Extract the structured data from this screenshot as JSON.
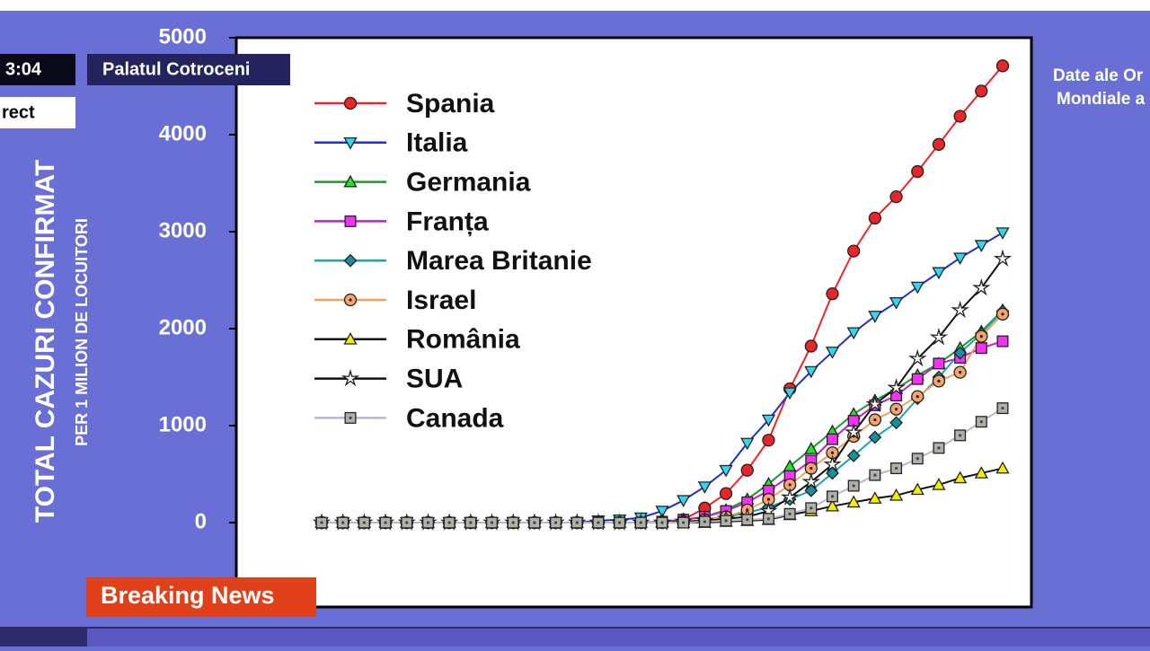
{
  "overlay": {
    "clock": "3:04",
    "location": "Palatul Cotroceni",
    "live": "rect",
    "source_line1": "Date ale Or",
    "source_line2": "Mondiale a",
    "breaking": "Breaking News"
  },
  "chart_data": {
    "type": "line",
    "y_title": "TOTAL CAZURI CONFIRMAT",
    "y_subtitle": "PER 1 MILION DE LOCUITORI",
    "categories": [
      null,
      null,
      null,
      null,
      null,
      null,
      null,
      null,
      null,
      null,
      null,
      null,
      null,
      null,
      null,
      null,
      null,
      null,
      null,
      null,
      null,
      null,
      null,
      null,
      null,
      null,
      null,
      null,
      null,
      null,
      null,
      null,
      null
    ],
    "ylim": [
      -870,
      5000
    ],
    "yticks": [
      0,
      1000,
      2000,
      3000,
      4000,
      5000
    ],
    "legend": "upper left",
    "series": [
      {
        "name": "Spania",
        "color": "#e8262a",
        "marker": "circle",
        "marker_color": "#e8262a",
        "values": [
          0,
          0,
          0,
          0,
          0,
          0,
          0,
          0,
          0,
          0,
          0,
          0,
          0,
          0,
          0,
          0,
          10,
          30,
          150,
          300,
          540,
          850,
          1380,
          1820,
          2360,
          2800,
          3140,
          3360,
          3620,
          3900,
          4190,
          4450,
          4710
        ]
      },
      {
        "name": "Italia",
        "color": "#1f2fd0",
        "marker": "tri-down",
        "marker_color": "#33d6f0",
        "values": [
          0,
          0,
          0,
          0,
          0,
          0,
          0,
          0,
          0,
          0,
          0,
          0,
          0,
          20,
          30,
          50,
          120,
          230,
          370,
          540,
          820,
          1060,
          1340,
          1560,
          1760,
          1960,
          2130,
          2270,
          2430,
          2580,
          2730,
          2860,
          2990
        ]
      },
      {
        "name": "Germania",
        "color": "#1a9c2a",
        "marker": "tri-up",
        "marker_color": "#22e52a",
        "values": [
          0,
          0,
          0,
          0,
          0,
          0,
          0,
          0,
          0,
          0,
          0,
          0,
          0,
          0,
          0,
          0,
          10,
          30,
          60,
          130,
          240,
          400,
          580,
          760,
          940,
          1120,
          1260,
          1380,
          1520,
          1640,
          1800,
          1970,
          2190
        ]
      },
      {
        "name": "Franța",
        "color": "#c21fc2",
        "marker": "square",
        "marker_color": "#f531f5",
        "values": [
          0,
          0,
          0,
          0,
          0,
          0,
          0,
          0,
          0,
          0,
          0,
          0,
          0,
          0,
          0,
          0,
          10,
          30,
          60,
          120,
          210,
          330,
          480,
          640,
          860,
          1050,
          1210,
          1310,
          1480,
          1640,
          1700,
          1800,
          1870
        ]
      },
      {
        "name": "Marea Britanie",
        "color": "#1aa6b0",
        "marker": "diamond",
        "marker_color": "#1a8ea0",
        "values": [
          0,
          0,
          0,
          0,
          0,
          0,
          0,
          0,
          0,
          0,
          0,
          0,
          0,
          0,
          0,
          0,
          0,
          10,
          30,
          60,
          100,
          160,
          240,
          330,
          510,
          690,
          880,
          1030,
          1280,
          1500,
          1750,
          1950,
          2180
        ]
      },
      {
        "name": "Israel",
        "color": "#f0a060",
        "marker": "circle-dot",
        "marker_color": "#f5a56a",
        "values": [
          0,
          0,
          0,
          0,
          0,
          0,
          0,
          0,
          0,
          0,
          0,
          0,
          0,
          0,
          0,
          0,
          0,
          10,
          30,
          60,
          130,
          240,
          390,
          560,
          720,
          890,
          1060,
          1170,
          1300,
          1460,
          1550,
          1920,
          2150
        ]
      },
      {
        "name": "România",
        "color": "#111111",
        "marker": "tri-up",
        "marker_color": "#f2f000",
        "values": [
          0,
          0,
          0,
          0,
          0,
          0,
          0,
          0,
          0,
          0,
          0,
          0,
          0,
          0,
          0,
          0,
          0,
          0,
          0,
          10,
          20,
          30,
          80,
          120,
          170,
          210,
          250,
          280,
          340,
          390,
          460,
          510,
          560
        ]
      },
      {
        "name": "SUA",
        "color": "#111111",
        "marker": "star",
        "marker_color": "#ffffff",
        "values": [
          0,
          0,
          0,
          0,
          0,
          0,
          0,
          0,
          0,
          0,
          0,
          0,
          0,
          0,
          0,
          0,
          0,
          10,
          20,
          40,
          60,
          120,
          260,
          420,
          600,
          930,
          1220,
          1390,
          1690,
          1910,
          2190,
          2420,
          2720
        ]
      },
      {
        "name": "Canada",
        "color": "#b8b8c8",
        "marker": "square-dot",
        "marker_color": "#b0b0a8",
        "values": [
          0,
          0,
          0,
          0,
          0,
          0,
          0,
          0,
          0,
          0,
          0,
          0,
          0,
          0,
          0,
          0,
          0,
          0,
          10,
          20,
          30,
          40,
          90,
          150,
          270,
          380,
          490,
          560,
          660,
          770,
          900,
          1040,
          1180
        ]
      }
    ]
  }
}
